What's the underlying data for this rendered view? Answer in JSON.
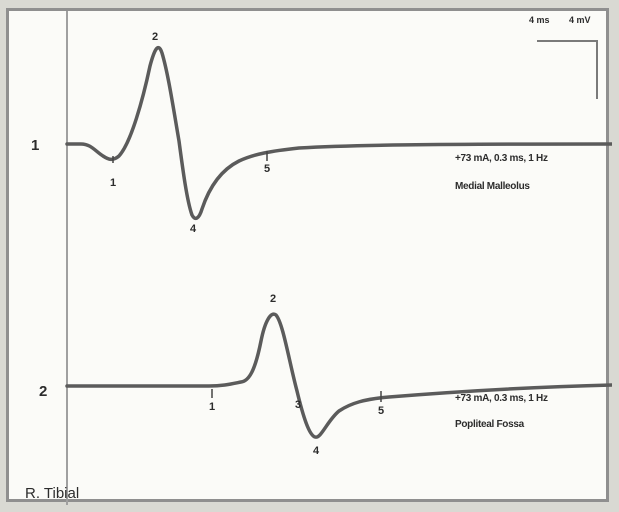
{
  "nerve_label": "R. Tibial",
  "scale": {
    "time": "4 ms",
    "amplitude": "4 mV"
  },
  "traces": [
    {
      "label": "1",
      "stimulus": "+73 mA, 0.3 ms, 1 Hz",
      "site": "Medial Malleolus",
      "markers": [
        "1",
        "2",
        "4",
        "5"
      ]
    },
    {
      "label": "2",
      "stimulus": "+73 mA, 0.3 ms, 1 Hz",
      "site": "Popliteal Fossa",
      "markers": [
        "1",
        "2",
        "3",
        "4",
        "5"
      ]
    }
  ],
  "colors": {
    "trace": "#5b5b5b",
    "frame": "#8f8f8f",
    "background": "#fbfbf8"
  }
}
